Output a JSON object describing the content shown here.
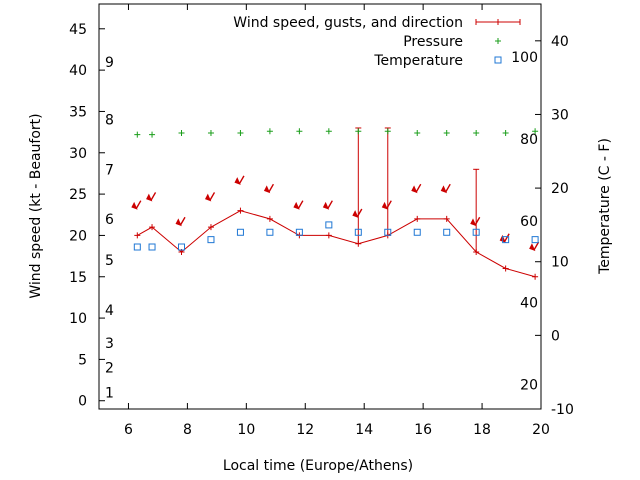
{
  "chart_data": {
    "type": "line",
    "xlabel": "Local time (Europe/Athens)",
    "ylabel": "Wind speed (kt - Beaufort)",
    "y2label": "Temperature (C - F)",
    "xlim": [
      5,
      20
    ],
    "ylim": [
      -1,
      48
    ],
    "y2lim": [
      -10,
      45
    ],
    "x_ticks": [
      6,
      8,
      10,
      12,
      14,
      16,
      18,
      20
    ],
    "y_ticks": [
      0,
      5,
      10,
      15,
      20,
      25,
      30,
      35,
      40,
      45
    ],
    "y2_ticks": [
      -10,
      0,
      10,
      20,
      30,
      40
    ],
    "beaufort_labels": [
      {
        "label": "1",
        "kt": 1
      },
      {
        "label": "2",
        "kt": 4
      },
      {
        "label": "3",
        "kt": 7
      },
      {
        "label": "4",
        "kt": 11
      },
      {
        "label": "5",
        "kt": 17
      },
      {
        "label": "6",
        "kt": 22
      },
      {
        "label": "7",
        "kt": 28
      },
      {
        "label": "8",
        "kt": 34
      },
      {
        "label": "9",
        "kt": 41
      }
    ],
    "fahrenheit_labels": [
      {
        "label": "20",
        "f": 20
      },
      {
        "label": "40",
        "f": 40
      },
      {
        "label": "60",
        "f": 60
      },
      {
        "label": "80",
        "f": 80
      },
      {
        "label": "100",
        "f": 100
      }
    ],
    "legend_position": "top-right",
    "series": [
      {
        "name": "Wind speed, gusts, and direction",
        "color": "#cc0000",
        "x": [
          6.3,
          6.8,
          7.8,
          8.8,
          9.8,
          10.8,
          11.8,
          12.8,
          13.8,
          14.8,
          15.8,
          16.8,
          17.8,
          18.8,
          19.8
        ],
        "values": [
          20,
          21,
          18,
          21,
          23,
          22,
          20,
          20,
          19,
          20,
          22,
          22,
          18,
          16,
          15
        ],
        "gusts": [
          null,
          null,
          null,
          null,
          null,
          null,
          null,
          null,
          33,
          33,
          null,
          null,
          28,
          null,
          null
        ],
        "direction_deg": [
          30,
          30,
          30,
          30,
          30,
          30,
          30,
          30,
          30,
          30,
          30,
          30,
          30,
          30,
          30
        ]
      },
      {
        "name": "Pressure",
        "color": "#1a9e1a",
        "x": [
          6.3,
          6.8,
          7.8,
          8.8,
          9.8,
          10.8,
          11.8,
          12.8,
          13.8,
          14.8,
          15.8,
          16.8,
          17.8,
          18.8,
          19.8
        ],
        "values": [
          32.2,
          32.2,
          32.4,
          32.4,
          32.4,
          32.6,
          32.6,
          32.6,
          32.6,
          32.6,
          32.4,
          32.4,
          32.4,
          32.4,
          32.6
        ]
      },
      {
        "name": "Temperature",
        "color": "#1f77d4",
        "axis": "y2",
        "x": [
          6.3,
          6.8,
          7.8,
          8.8,
          9.8,
          10.8,
          11.8,
          12.8,
          13.8,
          14.8,
          15.8,
          16.8,
          17.8,
          18.8,
          19.8
        ],
        "values": [
          12,
          12,
          12,
          13,
          14,
          14,
          14,
          15,
          14,
          14,
          14,
          14,
          14,
          13,
          13
        ]
      }
    ]
  }
}
